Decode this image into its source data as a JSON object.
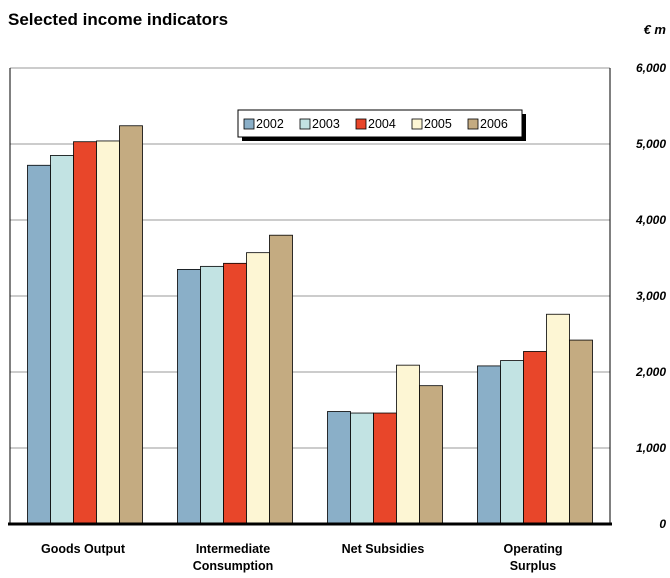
{
  "title": "Selected income indicators",
  "unit_label": "€ m",
  "chart_data": {
    "type": "bar",
    "title": "Selected income indicators",
    "ylabel": "€ m",
    "ylim": [
      0,
      6000
    ],
    "yticks": [
      "0",
      "1,000",
      "2,000",
      "3,000",
      "4,000",
      "5,000",
      "6,000"
    ],
    "y_axis_side": "right",
    "grid": true,
    "legend_position": "top-center",
    "categories": [
      [
        "Goods Output"
      ],
      [
        "Intermediate",
        "Consumption"
      ],
      [
        "Net Subsidies"
      ],
      [
        "Operating",
        "Surplus"
      ]
    ],
    "series": [
      {
        "name": "2002",
        "color": "#8aafc8",
        "values": [
          4720,
          3350,
          1480,
          2080
        ]
      },
      {
        "name": "2003",
        "color": "#c2e3e3",
        "values": [
          4850,
          3390,
          1460,
          2150
        ]
      },
      {
        "name": "2004",
        "color": "#e8462a",
        "values": [
          5030,
          3430,
          1460,
          2270
        ]
      },
      {
        "name": "2005",
        "color": "#fdf6d4",
        "values": [
          5040,
          3570,
          2090,
          2760
        ]
      },
      {
        "name": "2006",
        "color": "#c4ab81",
        "values": [
          5240,
          3800,
          1820,
          2420
        ]
      }
    ]
  }
}
